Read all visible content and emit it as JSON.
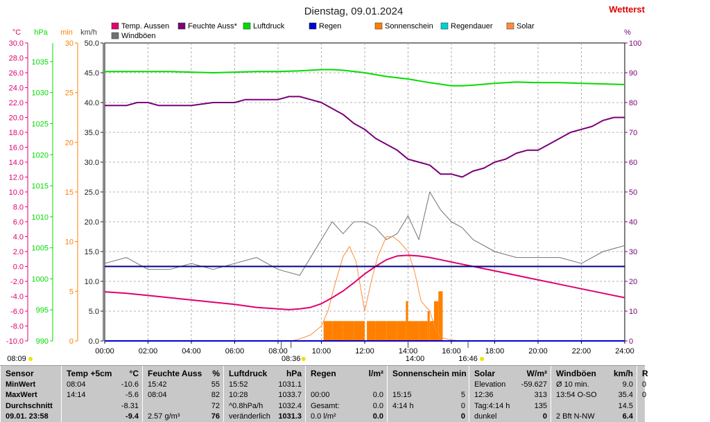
{
  "title": "Dienstag, 09.01.2024",
  "brand": "Wetterst",
  "colors": {
    "temp": "#e0006e",
    "humidity": "#780078",
    "pressure": "#00dc00",
    "rain": "#0000d0",
    "sunshine": "#ff8000",
    "rainduration": "#00d0d0",
    "solar": "#ff8c3c",
    "gust": "#707070",
    "brand": "#e00000",
    "grid": "#9a9a9a",
    "stats_bg": "#c8c8c8"
  },
  "legend": [
    {
      "label": "Temp. Aussen",
      "color": "#e0006e"
    },
    {
      "label": "Feuchte Auss*",
      "color": "#780078"
    },
    {
      "label": "Luftdruck",
      "color": "#00dc00"
    },
    {
      "label": "Regen",
      "color": "#0000d0"
    },
    {
      "label": "Sonnenschein",
      "color": "#ff8000"
    },
    {
      "label": "Regendauer",
      "color": "#00d0d0"
    },
    {
      "label": "Solar",
      "color": "#ff8c3c"
    },
    {
      "label": "Windböen",
      "color": "#707070"
    }
  ],
  "chart_data": {
    "type": "line",
    "x_ticks": [
      "00:00",
      "02:00",
      "04:00",
      "06:00",
      "08:00",
      "10:00",
      "12:00",
      "14:00",
      "16:00",
      "18:00",
      "20:00",
      "22:00",
      "24:00"
    ],
    "axes": {
      "temp": {
        "unit": "°C",
        "range": [
          -10,
          30
        ],
        "ticks": [
          "30.0",
          "28.0",
          "26.0",
          "24.0",
          "22.0",
          "20.0",
          "18.0",
          "16.0",
          "14.0",
          "12.0",
          "10.0",
          "8.0",
          "6.0",
          "4.0",
          "2.0",
          "0.0",
          "-2.0",
          "-4.0",
          "-6.0",
          "-8.0",
          "-10.0"
        ]
      },
      "pressure": {
        "unit": "hPa",
        "range": [
          990,
          1038
        ],
        "ticks": [
          "1035",
          "1030",
          "1025",
          "1020",
          "1015",
          "1010",
          "1005",
          "1000",
          "995",
          "990"
        ]
      },
      "minutes": {
        "unit": "min",
        "range": [
          0,
          30
        ],
        "ticks": [
          "30",
          "25",
          "20",
          "15",
          "10",
          "5",
          "0"
        ]
      },
      "wind": {
        "unit": "km/h",
        "range": [
          0,
          50
        ],
        "ticks": [
          "50.0",
          "45.0",
          "40.0",
          "35.0",
          "30.0",
          "25.0",
          "20.0",
          "15.0",
          "10.0",
          "5.0",
          "0.0"
        ]
      },
      "humidity": {
        "unit": "%",
        "range": [
          0,
          100
        ],
        "ticks": [
          "100",
          "90",
          "80",
          "70",
          "60",
          "50",
          "40",
          "30",
          "20",
          "10",
          "0"
        ]
      }
    },
    "series": [
      {
        "name": "Temp. Aussen",
        "axis": "temp",
        "x": [
          0,
          1,
          2,
          3,
          4,
          5,
          6,
          7,
          8,
          8.5,
          9,
          9.5,
          10,
          10.5,
          11,
          11.5,
          12,
          12.5,
          13,
          13.5,
          14,
          14.5,
          15,
          15.5,
          16,
          16.5,
          17,
          18,
          19,
          20,
          21,
          22,
          23,
          24
        ],
        "y": [
          -3.4,
          -3.6,
          -3.9,
          -4.2,
          -4.5,
          -4.8,
          -5.1,
          -5.5,
          -5.7,
          -5.8,
          -5.7,
          -5.5,
          -5.0,
          -4.2,
          -3.3,
          -2.2,
          -1.0,
          0.0,
          0.9,
          1.4,
          1.5,
          1.4,
          1.2,
          0.9,
          0.6,
          0.3,
          0.0,
          -0.6,
          -1.2,
          -1.8,
          -2.4,
          -3.0,
          -3.6,
          -4.2
        ]
      },
      {
        "name": "Feuchte Auss*",
        "axis": "humidity",
        "x": [
          0,
          0.5,
          1,
          1.5,
          2,
          2.5,
          3,
          3.5,
          4,
          5,
          6,
          6.5,
          7,
          7.5,
          8,
          8.5,
          9,
          9.5,
          10,
          10.5,
          11,
          11.5,
          12,
          12.5,
          13,
          13.5,
          14,
          14.5,
          15,
          15.5,
          16,
          16.5,
          17,
          17.5,
          18,
          18.5,
          19,
          19.5,
          20,
          20.5,
          21,
          21.5,
          22,
          22.5,
          23,
          23.5,
          24
        ],
        "y": [
          79,
          79,
          79,
          80,
          80,
          79,
          79,
          79,
          79,
          80,
          80,
          81,
          81,
          81,
          81,
          82,
          82,
          81,
          80,
          78,
          76,
          73,
          71,
          68,
          66,
          64,
          61,
          60,
          59,
          56,
          56,
          55,
          57,
          58,
          60,
          61,
          63,
          64,
          64,
          66,
          68,
          70,
          71,
          72,
          74,
          75,
          75
        ]
      },
      {
        "name": "Luftdruck",
        "axis": "pressure",
        "x": [
          0,
          1,
          2,
          3,
          4,
          5,
          6,
          7,
          8,
          9,
          10,
          10.5,
          11,
          12,
          13,
          14,
          15,
          16,
          16.5,
          17,
          18,
          19,
          20,
          21,
          22,
          23,
          24
        ],
        "y": [
          1033.4,
          1033.4,
          1033.4,
          1033.4,
          1033.3,
          1033.2,
          1033.3,
          1033.4,
          1033.4,
          1033.5,
          1033.7,
          1033.7,
          1033.6,
          1033.2,
          1032.6,
          1032.2,
          1031.6,
          1031.1,
          1031.1,
          1031.2,
          1031.5,
          1031.7,
          1031.6,
          1031.6,
          1031.5,
          1031.4,
          1031.3
        ]
      },
      {
        "name": "Regen",
        "axis": "temp",
        "x": [
          0,
          24
        ],
        "y": [
          -10,
          -10
        ]
      },
      {
        "name": "Regendauer",
        "axis": "minutes",
        "x": [
          0,
          24
        ],
        "y": [
          0,
          0
        ]
      },
      {
        "name": "Solar",
        "axis": "minutes",
        "x": [
          8.6,
          9,
          9.5,
          10,
          10.3,
          10.6,
          11,
          11.3,
          11.6,
          12,
          12.3,
          12.6,
          13,
          13.3,
          13.6,
          14,
          14.3,
          14.6,
          15,
          15.3,
          15.6,
          16,
          16.5,
          16.8
        ],
        "y": [
          0,
          0.2,
          0.6,
          1.5,
          3,
          5.5,
          8.5,
          9.5,
          8,
          3,
          6,
          8.5,
          10.5,
          10.5,
          10,
          9,
          7,
          4,
          3,
          1,
          0.3,
          0.1,
          0,
          0
        ]
      },
      {
        "name": "Windböen",
        "axis": "wind",
        "x": [
          0,
          1,
          2,
          3,
          4,
          5,
          6,
          7,
          8,
          9,
          10,
          10.5,
          11,
          11.5,
          12,
          12.5,
          13,
          13.5,
          14,
          14.5,
          15,
          15.5,
          16,
          16.5,
          17,
          18,
          19,
          20,
          21,
          22,
          23,
          24
        ],
        "y": [
          13,
          14,
          12,
          12,
          13,
          12,
          13,
          14,
          12,
          11,
          17,
          20,
          18,
          20,
          20,
          19,
          17,
          18,
          21,
          17,
          25,
          22,
          20,
          19,
          17,
          15,
          14,
          14,
          14,
          13,
          15,
          16
        ]
      }
    ],
    "sunshine_bars": {
      "axis": "minutes",
      "x": [
        10.1,
        10.5,
        11,
        11.5,
        12,
        12.1,
        12.5,
        13,
        13.5,
        13.9,
        14,
        14.5,
        14.9,
        15,
        15.2,
        15.4,
        15.6
      ],
      "y": [
        2,
        2,
        2,
        2,
        0,
        2,
        2,
        2,
        2,
        4,
        2,
        2,
        3,
        2,
        4,
        5,
        0
      ]
    },
    "dashed_level_kmh": 12.5,
    "markers": [
      {
        "label": "08:09",
        "x": 8.15
      },
      {
        "label": "08:36",
        "x": 8.6
      },
      {
        "label": "14:00",
        "x": 14.0
      },
      {
        "label": "16:46",
        "x": 16.77
      }
    ]
  },
  "stats": {
    "columns": [
      {
        "header": [
          "Sensor",
          ""
        ],
        "rows": [
          [
            "MinWert",
            ""
          ],
          [
            "MaxWert",
            ""
          ],
          [
            "Durchschnitt",
            ""
          ],
          [
            "09.01. 23:58",
            ""
          ]
        ]
      },
      {
        "header": [
          "Temp +5cm",
          "°C"
        ],
        "rows": [
          [
            "08:04",
            "-10.6"
          ],
          [
            "14:14",
            "-5.6"
          ],
          [
            "",
            "-8.31"
          ],
          [
            "",
            "-9.4"
          ]
        ]
      },
      {
        "header": [
          "Feuchte Auss",
          "%"
        ],
        "rows": [
          [
            "15:42",
            "55"
          ],
          [
            "08:04",
            "82"
          ],
          [
            "",
            "72"
          ],
          [
            "2.57 g/m³",
            "76"
          ]
        ]
      },
      {
        "header": [
          "Luftdruck",
          "hPa"
        ],
        "rows": [
          [
            "15:52",
            "1031.1"
          ],
          [
            "10:28",
            "1033.7"
          ],
          [
            "^0.8hPa/h",
            "1032.4"
          ],
          [
            "veränderlich",
            "1031.3"
          ]
        ]
      },
      {
        "header": [
          "Regen",
          "l/m²"
        ],
        "rows": [
          [
            "",
            ""
          ],
          [
            "00:00",
            "0.0"
          ],
          [
            "Gesamt:",
            "0.0"
          ],
          [
            "0.0 l/m²",
            "0.0"
          ]
        ]
      },
      {
        "header": [
          "Sonnenschein min",
          ""
        ],
        "rows": [
          [
            "",
            ""
          ],
          [
            "15:15",
            "5"
          ],
          [
            "4:14 h",
            "0"
          ],
          [
            "",
            "0"
          ]
        ]
      },
      {
        "header": [
          "Solar",
          "W/m²"
        ],
        "rows": [
          [
            "Elevation",
            "-59.627"
          ],
          [
            "12:36",
            "313"
          ],
          [
            "Tag:4:14 h",
            "135"
          ],
          [
            "dunkel",
            "0"
          ]
        ]
      },
      {
        "header": [
          "Windböen",
          "km/h"
        ],
        "rows": [
          [
            "Ø 10 min.",
            "9.0"
          ],
          [
            "13:54    O-SO",
            "35.4"
          ],
          [
            "",
            "14.5"
          ],
          [
            "2 Bft N-NW",
            "6.4"
          ]
        ]
      },
      {
        "header": [
          "R",
          ""
        ],
        "rows": [
          [
            "0",
            ""
          ],
          [
            "0",
            ""
          ],
          [
            "",
            ""
          ],
          [
            "",
            ""
          ]
        ]
      }
    ]
  }
}
